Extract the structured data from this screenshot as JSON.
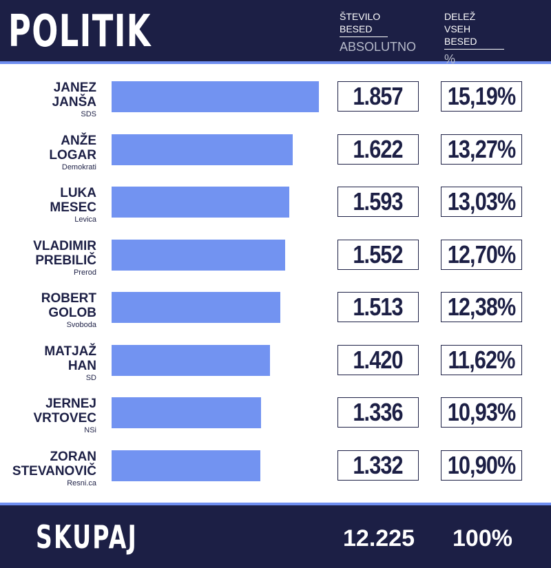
{
  "header": {
    "title": "POLITIK",
    "col_words": {
      "label_line1": "ŠTEVILO",
      "label_line2": "BESED",
      "sub": "ABSOLUTNO"
    },
    "col_share": {
      "label_line1": "DELEŽ",
      "label_line2": "VSEH BESED",
      "sub": "%"
    }
  },
  "colors": {
    "navy": "#1c1f45",
    "bar": "#7293f1",
    "accent_line": "#6f8ef0"
  },
  "chart_data": {
    "type": "bar",
    "orientation": "horizontal",
    "rows": [
      {
        "name_line1": "JANEZ",
        "name_line2": "JANŠA",
        "party": "SDS",
        "value": 1857,
        "value_label": "1.857",
        "share_label": "15,19%"
      },
      {
        "name_line1": "ANŽE",
        "name_line2": "LOGAR",
        "party": "Demokrati",
        "value": 1622,
        "value_label": "1.622",
        "share_label": "13,27%"
      },
      {
        "name_line1": "LUKA",
        "name_line2": "MESEC",
        "party": "Levica",
        "value": 1593,
        "value_label": "1.593",
        "share_label": "13,03%"
      },
      {
        "name_line1": "VLADIMIR",
        "name_line2": "PREBILIČ",
        "party": "Prerod",
        "value": 1552,
        "value_label": "1.552",
        "share_label": "12,70%"
      },
      {
        "name_line1": "ROBERT",
        "name_line2": "GOLOB",
        "party": "Svoboda",
        "value": 1513,
        "value_label": "1.513",
        "share_label": "12,38%"
      },
      {
        "name_line1": "MATJAŽ",
        "name_line2": "HAN",
        "party": "SD",
        "value": 1420,
        "value_label": "1.420",
        "share_label": "11,62%"
      },
      {
        "name_line1": "JERNEJ",
        "name_line2": "VRTOVEC",
        "party": "NSi",
        "value": 1336,
        "value_label": "1.336",
        "share_label": "10,93%"
      },
      {
        "name_line1": "ZORAN",
        "name_line2": "STEVANOVIČ",
        "party": "Resni.ca",
        "value": 1332,
        "value_label": "1.332",
        "share_label": "10,90%"
      }
    ]
  },
  "footer": {
    "label": "SKUPAJ",
    "total": "12.225",
    "share": "100%"
  }
}
